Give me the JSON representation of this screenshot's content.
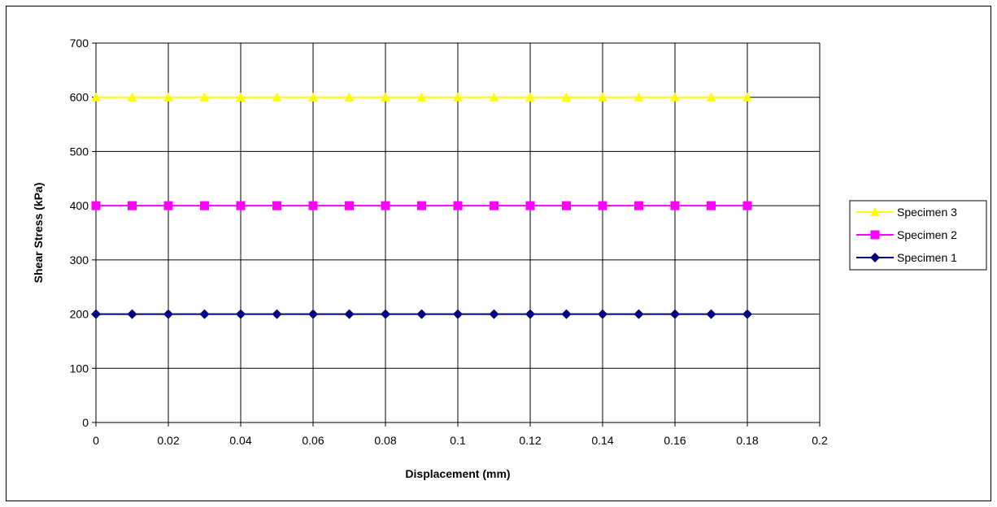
{
  "chart_data": {
    "type": "line",
    "title": "",
    "xlabel": "Displacement (mm)",
    "ylabel": "Shear Stress (kPa)",
    "xlim": [
      0,
      0.2
    ],
    "ylim": [
      0,
      700
    ],
    "x_ticks": [
      "0",
      "0.02",
      "0.04",
      "0.06",
      "0.08",
      "0.1",
      "0.12",
      "0.14",
      "0.16",
      "0.18",
      "0.2"
    ],
    "y_ticks": [
      "0",
      "100",
      "200",
      "300",
      "400",
      "500",
      "600",
      "700"
    ],
    "grid": true,
    "legend_position": "right",
    "x": [
      0,
      0.01,
      0.02,
      0.03,
      0.04,
      0.05,
      0.06,
      0.07,
      0.08,
      0.09,
      0.1,
      0.11,
      0.12,
      0.13,
      0.14,
      0.15,
      0.16,
      0.17,
      0.18
    ],
    "series": [
      {
        "name": "Specimen 3",
        "color": "#ffff00",
        "marker": "triangle",
        "values": [
          600,
          600,
          600,
          600,
          600,
          600,
          600,
          600,
          600,
          600,
          600,
          600,
          600,
          600,
          600,
          600,
          600,
          600,
          600
        ]
      },
      {
        "name": "Specimen 2",
        "color": "#ff00ff",
        "marker": "square",
        "values": [
          400,
          400,
          400,
          400,
          400,
          400,
          400,
          400,
          400,
          400,
          400,
          400,
          400,
          400,
          400,
          400,
          400,
          400,
          400
        ]
      },
      {
        "name": "Specimen 1",
        "color": "#000080",
        "marker": "diamond",
        "values": [
          200,
          200,
          200,
          200,
          200,
          200,
          200,
          200,
          200,
          200,
          200,
          200,
          200,
          200,
          200,
          200,
          200,
          200,
          200
        ]
      }
    ]
  }
}
